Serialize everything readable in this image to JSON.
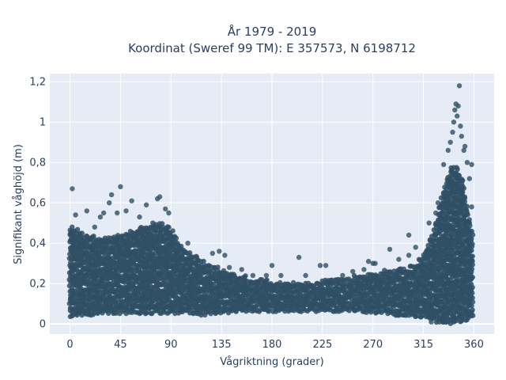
{
  "chart_data": {
    "type": "scatter",
    "title_lines": [
      "År 1979 - 2019",
      "Koordinat (Sweref 99 TM): E 357573, N 6198712"
    ],
    "xlabel": "Vågriktning (grader)",
    "ylabel": "Signifikant våghöjd (m)",
    "xlim": [
      -18,
      378
    ],
    "ylim": [
      -0.05,
      1.24
    ],
    "x_ticks": [
      0,
      45,
      90,
      135,
      180,
      225,
      270,
      315,
      360
    ],
    "x_tick_labels": [
      "0",
      "45",
      "90",
      "135",
      "180",
      "225",
      "270",
      "315",
      "360"
    ],
    "y_ticks": [
      0,
      0.2,
      0.4,
      0.6,
      0.8,
      1.0,
      1.2
    ],
    "y_tick_labels": [
      "0",
      "0,2",
      "0,4",
      "0,6",
      "0,8",
      "1",
      "1,2"
    ],
    "grid": true,
    "colors": {
      "background": "#e5ecf6",
      "grid": "#ffffff",
      "marker": "#2f4f65"
    },
    "envelope": {
      "x": [
        0,
        10,
        20,
        30,
        40,
        50,
        60,
        70,
        80,
        90,
        100,
        110,
        120,
        130,
        140,
        150,
        160,
        170,
        180,
        190,
        200,
        210,
        220,
        230,
        240,
        250,
        260,
        270,
        280,
        290,
        300,
        310,
        320,
        325,
        330,
        335,
        340,
        345,
        350,
        355,
        360
      ],
      "y_low": [
        0.04,
        0.05,
        0.05,
        0.06,
        0.06,
        0.06,
        0.06,
        0.06,
        0.06,
        0.06,
        0.06,
        0.06,
        0.05,
        0.06,
        0.06,
        0.07,
        0.07,
        0.07,
        0.07,
        0.07,
        0.07,
        0.07,
        0.07,
        0.07,
        0.07,
        0.07,
        0.07,
        0.06,
        0.06,
        0.05,
        0.05,
        0.04,
        0.03,
        0.02,
        0.01,
        0.01,
        0.01,
        0.02,
        0.02,
        0.03,
        0.04
      ],
      "y_high": [
        0.48,
        0.45,
        0.43,
        0.42,
        0.44,
        0.45,
        0.47,
        0.49,
        0.5,
        0.47,
        0.38,
        0.34,
        0.3,
        0.28,
        0.26,
        0.24,
        0.23,
        0.22,
        0.21,
        0.21,
        0.21,
        0.21,
        0.21,
        0.22,
        0.22,
        0.23,
        0.24,
        0.25,
        0.26,
        0.27,
        0.28,
        0.3,
        0.4,
        0.48,
        0.6,
        0.7,
        0.78,
        0.78,
        0.72,
        0.55,
        0.42
      ]
    },
    "outliers": [
      {
        "x": 2,
        "y": 0.67
      },
      {
        "x": 5,
        "y": 0.54
      },
      {
        "x": 15,
        "y": 0.56
      },
      {
        "x": 22,
        "y": 0.48
      },
      {
        "x": 27,
        "y": 0.53
      },
      {
        "x": 30,
        "y": 0.55
      },
      {
        "x": 35,
        "y": 0.6
      },
      {
        "x": 37,
        "y": 0.64
      },
      {
        "x": 42,
        "y": 0.55
      },
      {
        "x": 45,
        "y": 0.68
      },
      {
        "x": 50,
        "y": 0.56
      },
      {
        "x": 55,
        "y": 0.61
      },
      {
        "x": 62,
        "y": 0.53
      },
      {
        "x": 68,
        "y": 0.59
      },
      {
        "x": 78,
        "y": 0.62
      },
      {
        "x": 80,
        "y": 0.63
      },
      {
        "x": 85,
        "y": 0.57
      },
      {
        "x": 88,
        "y": 0.55
      },
      {
        "x": 105,
        "y": 0.4
      },
      {
        "x": 113,
        "y": 0.33
      },
      {
        "x": 127,
        "y": 0.35
      },
      {
        "x": 133,
        "y": 0.36
      },
      {
        "x": 138,
        "y": 0.34
      },
      {
        "x": 142,
        "y": 0.28
      },
      {
        "x": 153,
        "y": 0.27
      },
      {
        "x": 163,
        "y": 0.24
      },
      {
        "x": 175,
        "y": 0.24
      },
      {
        "x": 180,
        "y": 0.29
      },
      {
        "x": 188,
        "y": 0.24
      },
      {
        "x": 204,
        "y": 0.33
      },
      {
        "x": 210,
        "y": 0.24
      },
      {
        "x": 223,
        "y": 0.29
      },
      {
        "x": 228,
        "y": 0.29
      },
      {
        "x": 243,
        "y": 0.24
      },
      {
        "x": 252,
        "y": 0.26
      },
      {
        "x": 262,
        "y": 0.27
      },
      {
        "x": 266,
        "y": 0.31
      },
      {
        "x": 270,
        "y": 0.3
      },
      {
        "x": 272,
        "y": 0.3
      },
      {
        "x": 285,
        "y": 0.37
      },
      {
        "x": 293,
        "y": 0.32
      },
      {
        "x": 302,
        "y": 0.34
      },
      {
        "x": 302,
        "y": 0.44
      },
      {
        "x": 308,
        "y": 0.38
      },
      {
        "x": 311,
        "y": 0.32
      },
      {
        "x": 320,
        "y": 0.5
      },
      {
        "x": 326,
        "y": 0.55
      },
      {
        "x": 328,
        "y": 0.6
      },
      {
        "x": 333,
        "y": 0.65
      },
      {
        "x": 333,
        "y": 0.79
      },
      {
        "x": 337,
        "y": 0.86
      },
      {
        "x": 339,
        "y": 0.9
      },
      {
        "x": 341,
        "y": 0.95
      },
      {
        "x": 342,
        "y": 1.0
      },
      {
        "x": 343,
        "y": 1.06
      },
      {
        "x": 344,
        "y": 1.09
      },
      {
        "x": 345,
        "y": 1.03
      },
      {
        "x": 346,
        "y": 1.08
      },
      {
        "x": 347,
        "y": 1.18
      },
      {
        "x": 348,
        "y": 0.98
      },
      {
        "x": 349,
        "y": 0.93
      },
      {
        "x": 351,
        "y": 0.86
      },
      {
        "x": 352,
        "y": 0.88
      },
      {
        "x": 354,
        "y": 0.8
      },
      {
        "x": 356,
        "y": 0.72
      },
      {
        "x": 358,
        "y": 0.79
      },
      {
        "x": 358,
        "y": 0.58
      },
      {
        "x": 342,
        "y": 0.01
      },
      {
        "x": 332,
        "y": 0.01
      },
      {
        "x": 322,
        "y": 0.01
      }
    ]
  }
}
